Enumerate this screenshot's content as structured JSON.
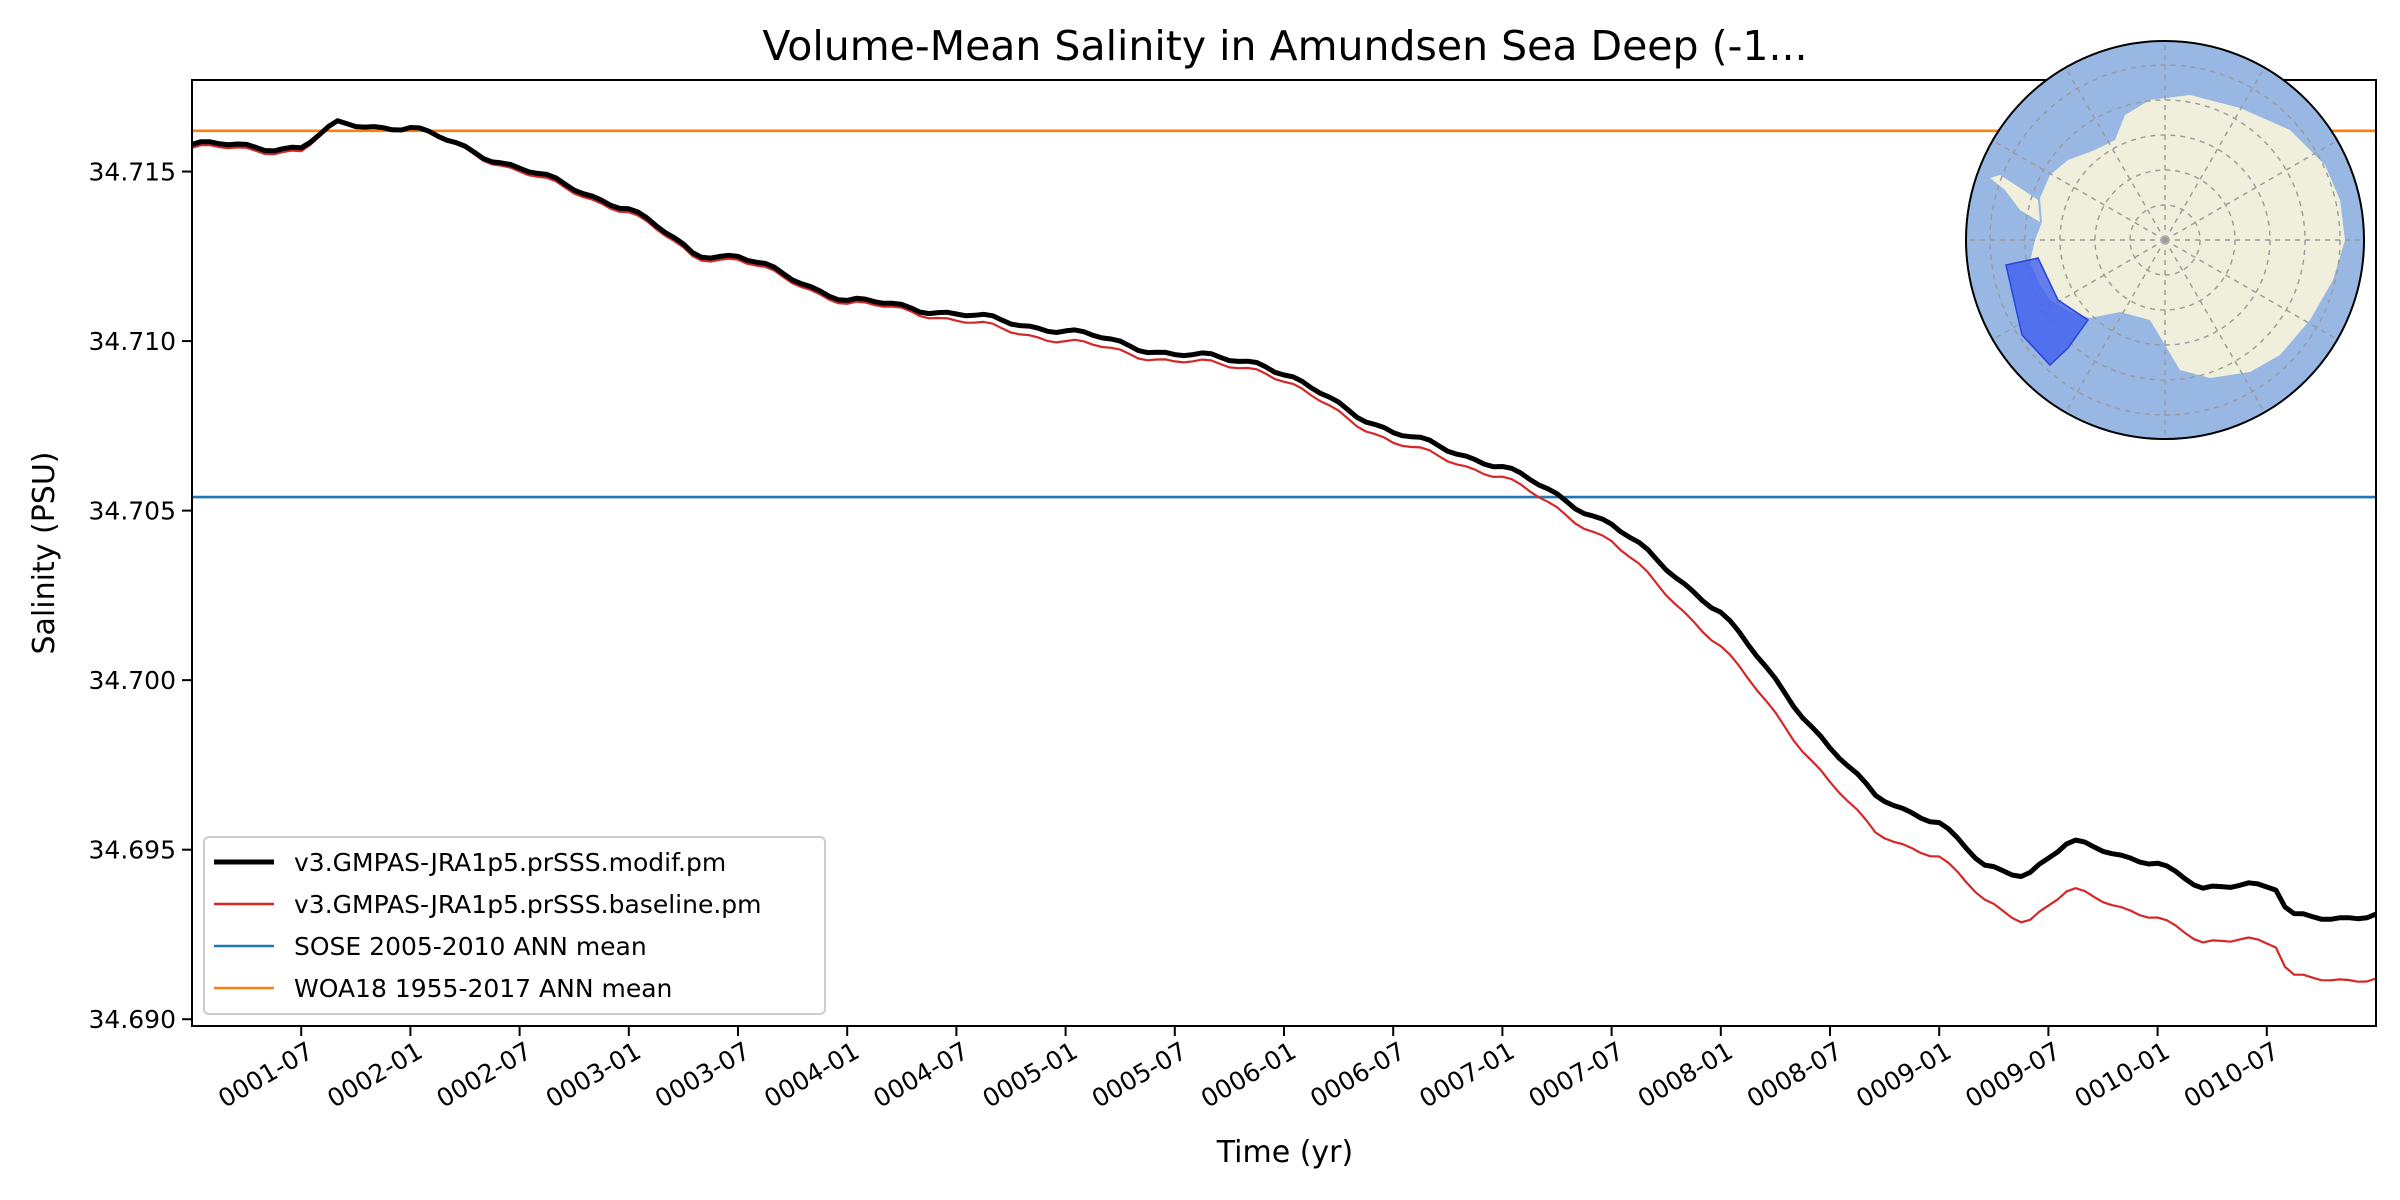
{
  "chart_data": {
    "type": "line",
    "title": "Volume-Mean Salinity in Amundsen Sea Deep (-1...",
    "xlabel": "Time (yr)",
    "ylabel": "Salinity (PSU)",
    "xlim": [
      0.0,
      10.0
    ],
    "ylim": [
      34.6898,
      34.7177
    ],
    "grid": false,
    "legend_position": "lower-left",
    "x_ticks": [
      {
        "pos": 0.5,
        "label": "0001-07"
      },
      {
        "pos": 1.0,
        "label": "0002-01"
      },
      {
        "pos": 1.5,
        "label": "0002-07"
      },
      {
        "pos": 2.0,
        "label": "0003-01"
      },
      {
        "pos": 2.5,
        "label": "0003-07"
      },
      {
        "pos": 3.0,
        "label": "0004-01"
      },
      {
        "pos": 3.5,
        "label": "0004-07"
      },
      {
        "pos": 4.0,
        "label": "0005-01"
      },
      {
        "pos": 4.5,
        "label": "0005-07"
      },
      {
        "pos": 5.0,
        "label": "0006-01"
      },
      {
        "pos": 5.5,
        "label": "0006-07"
      },
      {
        "pos": 6.0,
        "label": "0007-01"
      },
      {
        "pos": 6.5,
        "label": "0007-07"
      },
      {
        "pos": 7.0,
        "label": "0008-01"
      },
      {
        "pos": 7.5,
        "label": "0008-07"
      },
      {
        "pos": 8.0,
        "label": "0009-01"
      },
      {
        "pos": 8.5,
        "label": "0009-07"
      },
      {
        "pos": 9.0,
        "label": "0010-01"
      },
      {
        "pos": 9.5,
        "label": "0010-07"
      }
    ],
    "y_ticks": [
      {
        "value": 34.69,
        "label": "34.690"
      },
      {
        "value": 34.695,
        "label": "34.695"
      },
      {
        "value": 34.7,
        "label": "34.700"
      },
      {
        "value": 34.705,
        "label": "34.705"
      },
      {
        "value": 34.71,
        "label": "34.710"
      },
      {
        "value": 34.715,
        "label": "34.715"
      }
    ],
    "x_key": [
      0.0,
      0.5,
      0.67,
      1.0,
      1.5,
      2.0,
      2.3,
      2.5,
      3.0,
      3.3,
      3.5,
      4.0,
      4.5,
      4.9,
      5.0,
      5.5,
      6.0,
      6.5,
      7.0,
      7.5,
      7.7,
      8.0,
      8.2,
      8.4,
      8.6,
      8.75,
      9.0,
      9.2,
      9.4,
      9.55,
      9.6,
      9.8,
      10.0
    ],
    "series": [
      {
        "name": "v3.GMPAS-JRA1p5.prSSS.modif.pm",
        "color": "#000000",
        "width": 5,
        "values": [
          34.7158,
          34.7157,
          34.7164,
          34.7163,
          34.7151,
          34.7139,
          34.7126,
          34.7125,
          34.7112,
          34.711,
          34.7108,
          34.7103,
          34.7096,
          34.7094,
          34.709,
          34.7073,
          34.7063,
          34.7046,
          34.702,
          34.698,
          34.6966,
          34.6958,
          34.6945,
          34.6943,
          34.6952,
          34.695,
          34.6946,
          34.6938,
          34.6941,
          34.6938,
          34.693,
          34.693,
          34.6931
        ]
      },
      {
        "name": "v3.GMPAS-JRA1p5.prSSS.baseline.pm",
        "color": "#d62728",
        "width": 2.2,
        "values": [
          34.7157,
          34.7156,
          34.7164,
          34.7163,
          34.715,
          34.7138,
          34.7125,
          34.7124,
          34.7111,
          34.7109,
          34.7106,
          34.71,
          34.7094,
          34.7092,
          34.7088,
          34.707,
          34.706,
          34.7041,
          34.701,
          34.697,
          34.6955,
          34.6948,
          34.6935,
          34.6929,
          34.6938,
          34.6935,
          34.693,
          34.6922,
          34.6925,
          34.6921,
          34.6912,
          34.6912,
          34.6912
        ]
      }
    ],
    "reference_lines": [
      {
        "name": "SOSE 2005-2010 ANN mean",
        "value": 34.7054,
        "color": "#1f77b4"
      },
      {
        "name": "WOA18 1955-2017 ANN mean",
        "value": 34.7162,
        "color": "#ff7f0e"
      }
    ],
    "inset_map": {
      "ocean_color": "#98b8e3",
      "land_color": "#efefdc",
      "region_color": "#3d5cf0"
    }
  }
}
